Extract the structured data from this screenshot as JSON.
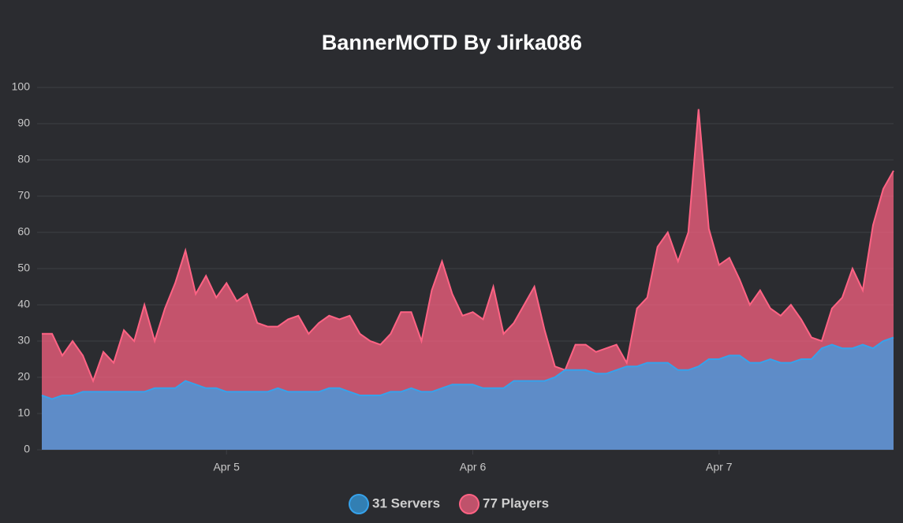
{
  "chart_data": {
    "type": "area",
    "title": "BannerMOTD By Jirka086",
    "categories": [
      null,
      null,
      null,
      null,
      null,
      null,
      null,
      null,
      null,
      null,
      null,
      null,
      null,
      null,
      null,
      null,
      null,
      null,
      "Apr 5",
      null,
      null,
      null,
      null,
      null,
      null,
      null,
      null,
      null,
      null,
      null,
      null,
      null,
      null,
      null,
      null,
      null,
      null,
      null,
      null,
      null,
      null,
      null,
      "Apr 6",
      null,
      null,
      null,
      null,
      null,
      null,
      null,
      null,
      null,
      null,
      null,
      null,
      null,
      null,
      null,
      null,
      null,
      null,
      null,
      null,
      null,
      null,
      null,
      "Apr 7",
      null,
      null,
      null,
      null,
      null,
      null,
      null,
      null,
      null,
      null,
      null,
      null,
      null,
      null,
      null,
      null,
      null
    ],
    "series": [
      {
        "name": "31 Servers",
        "color": "#36a2eb",
        "values": [
          15,
          14,
          15,
          15,
          16,
          16,
          16,
          16,
          16,
          16,
          16,
          17,
          17,
          17,
          19,
          18,
          17,
          17,
          16,
          16,
          16,
          16,
          16,
          17,
          16,
          16,
          16,
          16,
          17,
          17,
          16,
          15,
          15,
          15,
          16,
          16,
          17,
          16,
          16,
          17,
          18,
          18,
          18,
          17,
          17,
          17,
          19,
          19,
          19,
          19,
          20,
          22,
          22,
          22,
          21,
          21,
          22,
          23,
          23,
          24,
          24,
          24,
          22,
          22,
          23,
          25,
          25,
          26,
          26,
          24,
          24,
          25,
          24,
          24,
          25,
          25,
          28,
          29,
          28,
          28,
          29,
          28,
          30,
          31
        ]
      },
      {
        "name": "77 Players",
        "color": "#ff6384",
        "values": [
          32,
          32,
          26,
          30,
          26,
          19,
          27,
          24,
          33,
          30,
          40,
          30,
          39,
          46,
          55,
          43,
          48,
          42,
          46,
          41,
          43,
          35,
          34,
          34,
          36,
          37,
          32,
          35,
          37,
          36,
          37,
          32,
          30,
          29,
          32,
          38,
          38,
          30,
          44,
          52,
          43,
          37,
          38,
          36,
          45,
          32,
          35,
          40,
          45,
          33,
          23,
          22,
          29,
          29,
          27,
          28,
          29,
          24,
          39,
          42,
          56,
          60,
          52,
          60,
          94,
          61,
          51,
          53,
          47,
          40,
          44,
          39,
          37,
          40,
          36,
          31,
          30,
          39,
          42,
          50,
          44,
          62,
          72,
          77
        ]
      }
    ],
    "ylim": [
      0,
      100
    ],
    "yticks": [
      0,
      10,
      20,
      30,
      40,
      50,
      60,
      70,
      80,
      90,
      100
    ],
    "grid": true
  }
}
